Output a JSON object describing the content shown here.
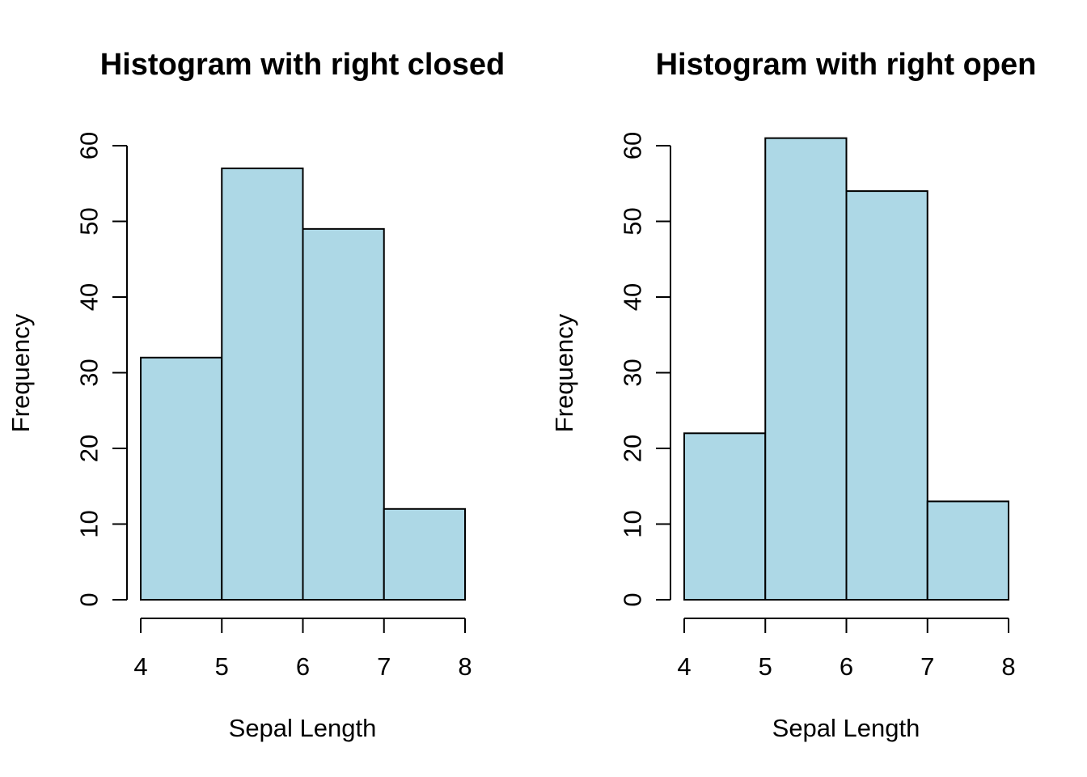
{
  "chart_data": [
    {
      "type": "bar",
      "title": "Histogram with right closed",
      "xlabel": "Sepal Length",
      "ylabel": "Frequency",
      "bins": [
        [
          4,
          5
        ],
        [
          5,
          6
        ],
        [
          6,
          7
        ],
        [
          7,
          8
        ]
      ],
      "values": [
        32,
        57,
        49,
        12
      ],
      "xticks": [
        4,
        5,
        6,
        7,
        8
      ],
      "yticks": [
        0,
        10,
        20,
        30,
        40,
        50,
        60
      ],
      "xlim": [
        4,
        8
      ],
      "ylim": [
        0,
        60
      ],
      "bar_color": "#add8e6",
      "grid": false,
      "legend": "none"
    },
    {
      "type": "bar",
      "title": "Histogram with right open",
      "xlabel": "Sepal Length",
      "ylabel": "Frequency",
      "bins": [
        [
          4,
          5
        ],
        [
          5,
          6
        ],
        [
          6,
          7
        ],
        [
          7,
          8
        ]
      ],
      "values": [
        22,
        61,
        54,
        13
      ],
      "xticks": [
        4,
        5,
        6,
        7,
        8
      ],
      "yticks": [
        0,
        10,
        20,
        30,
        40,
        50,
        60
      ],
      "xlim": [
        4,
        8
      ],
      "ylim": [
        0,
        60
      ],
      "bar_color": "#add8e6",
      "grid": false,
      "legend": "none"
    }
  ]
}
